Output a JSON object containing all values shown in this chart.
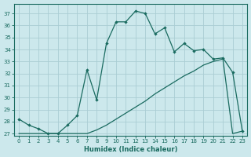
{
  "xlabel": "Humidex (Indice chaleur)",
  "bg_color": "#cce8ec",
  "grid_color": "#aacdd4",
  "line_color": "#1a6b60",
  "xlim": [
    -0.5,
    23.5
  ],
  "ylim": [
    26.8,
    37.8
  ],
  "yticks": [
    27,
    28,
    29,
    30,
    31,
    32,
    33,
    34,
    35,
    36,
    37
  ],
  "xticks": [
    0,
    1,
    2,
    3,
    4,
    5,
    6,
    7,
    8,
    9,
    10,
    11,
    12,
    13,
    14,
    15,
    16,
    17,
    18,
    19,
    20,
    21,
    22,
    23
  ],
  "series1_x": [
    0,
    1,
    2,
    3,
    4,
    5,
    6,
    7,
    8,
    9,
    10,
    11,
    12,
    13,
    14,
    15,
    16,
    17,
    18,
    19,
    20,
    21,
    22,
    23
  ],
  "series1_y": [
    28.2,
    27.7,
    27.4,
    27.0,
    27.0,
    27.7,
    28.5,
    32.3,
    29.8,
    34.5,
    36.3,
    36.3,
    37.2,
    37.0,
    35.3,
    35.8,
    33.8,
    34.5,
    33.9,
    34.0,
    33.2,
    33.3,
    32.1,
    27.2
  ],
  "series2_x": [
    0,
    1,
    2,
    3,
    4,
    5,
    6,
    7,
    8,
    9,
    10,
    11,
    12,
    13,
    14,
    15,
    16,
    17,
    18,
    19,
    20,
    21,
    22,
    23
  ],
  "series2_y": [
    27.0,
    27.0,
    27.0,
    27.0,
    27.0,
    27.0,
    27.0,
    27.0,
    27.3,
    27.7,
    28.2,
    28.7,
    29.2,
    29.7,
    30.3,
    30.8,
    31.3,
    31.8,
    32.2,
    32.7,
    33.0,
    33.2,
    27.0,
    27.2
  ]
}
